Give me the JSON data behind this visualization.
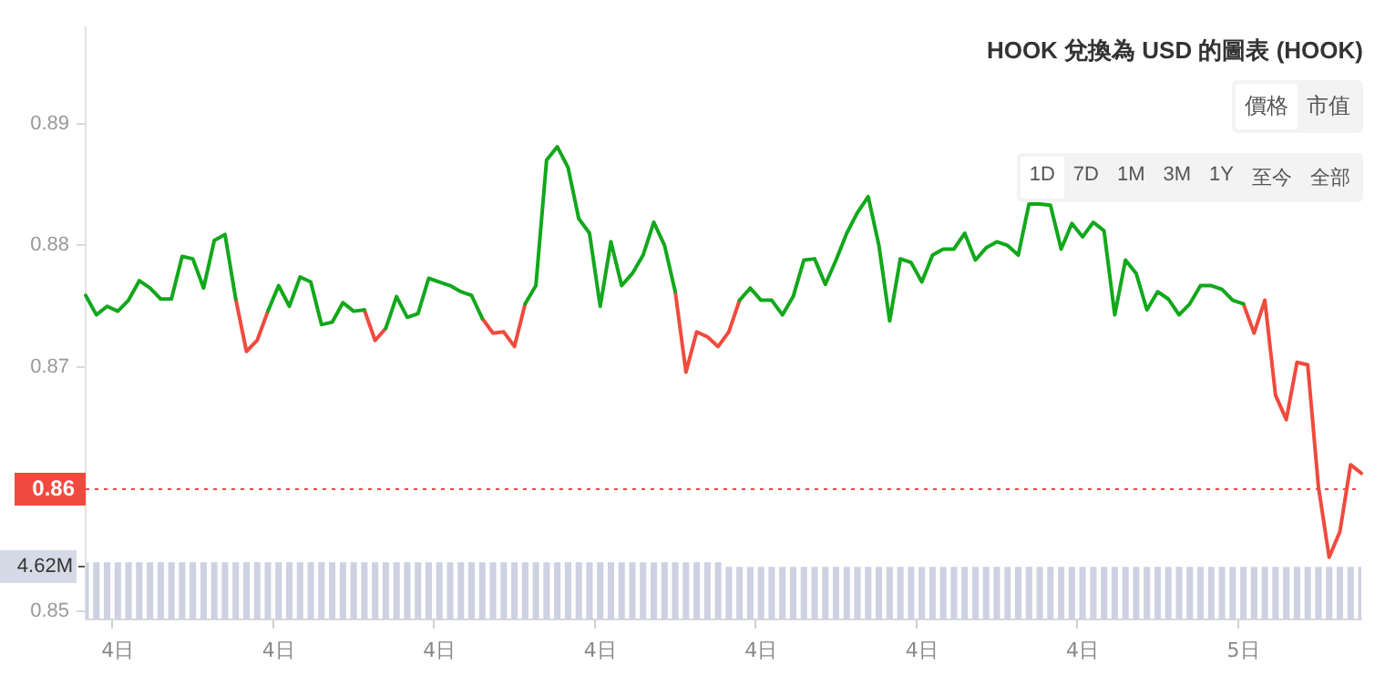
{
  "chart_data": {
    "type": "line",
    "title": "HOOK 兌換為 USD 的圖表 (HOOK)",
    "annotations": [
      "價格",
      "市值",
      "1D",
      "7D",
      "1M",
      "3M",
      "1Y",
      "至今",
      "全部"
    ],
    "categories": [
      null,
      null,
      null,
      "4日",
      null,
      null,
      null,
      null,
      null,
      null,
      null,
      null,
      null,
      null,
      null,
      null,
      null,
      null,
      "4日",
      null,
      null,
      null,
      null,
      null,
      null,
      null,
      null,
      null,
      null,
      null,
      null,
      null,
      null,
      "4日",
      null,
      null,
      null,
      null,
      null,
      null,
      null,
      null,
      null,
      null,
      null,
      null,
      null,
      null,
      "4日",
      null,
      null,
      null,
      null,
      null,
      null,
      null,
      null,
      null,
      null,
      null,
      null,
      null,
      null,
      "4日",
      null,
      null,
      null,
      null,
      null,
      null,
      null,
      null,
      null,
      null,
      null,
      null,
      null,
      null,
      "4日",
      null,
      null,
      null,
      null,
      null,
      null,
      null,
      null,
      null,
      null,
      null,
      null,
      null,
      null,
      "4日",
      null,
      null,
      null,
      null,
      null,
      null,
      null,
      null,
      null,
      null,
      null,
      null,
      null,
      null,
      "5日",
      null,
      null,
      null,
      null,
      null,
      null,
      null,
      null,
      null,
      null,
      null
    ],
    "ylim": [
      0.8493,
      0.8979
    ],
    "yticks": [
      0.85,
      0.87,
      0.88,
      0.89
    ],
    "y2lim": [
      0,
      51.8
    ],
    "y2ticks": [
      {
        "value": 4.62,
        "label": "4.62M"
      }
    ],
    "grid": false,
    "marker": "none",
    "ref_lines": [
      {
        "axis": "y",
        "value": 0.86,
        "label": "0.86",
        "color": "#f04a3e",
        "line_style": "dotted"
      }
    ],
    "series": [
      {
        "color": "#12a81c",
        "values": [
          0.8759,
          0.8743,
          0.875,
          0.8746,
          0.8755,
          0.8771,
          0.8765,
          0.8756,
          0.8756,
          0.8791,
          0.8789,
          0.8765,
          0.8804,
          0.8809,
          0.8756,
          null,
          null,
          0.8746,
          0.8767,
          0.875,
          0.8774,
          0.877,
          0.8735,
          0.8737,
          0.8753,
          0.8746,
          0.8747,
          null,
          0.8732,
          0.8758,
          0.8741,
          0.8744,
          0.8773,
          0.877,
          0.8767,
          0.8762,
          0.8759,
          0.874,
          null,
          null,
          null,
          0.8752,
          0.8767,
          0.887,
          0.8881,
          0.8864,
          0.8822,
          0.881,
          0.875,
          0.8803,
          0.8767,
          0.8777,
          0.8792,
          0.8819,
          0.88,
          0.8762,
          null,
          null,
          null,
          null,
          null,
          0.8755,
          0.8765,
          0.8755,
          0.8755,
          0.8743,
          0.8758,
          0.8788,
          0.8789,
          0.8768,
          0.8788,
          0.881,
          0.8827,
          0.884,
          0.88,
          0.8738,
          0.8789,
          0.8786,
          0.877,
          0.8792,
          0.8797,
          0.8797,
          0.881,
          0.8788,
          0.8798,
          0.8803,
          0.88,
          0.8792,
          0.8834,
          0.8834,
          0.8833,
          0.8797,
          0.8818,
          0.8807,
          0.8819,
          0.8812,
          0.8743,
          0.8788,
          0.8777,
          0.8747,
          0.8762,
          0.8756,
          0.8743,
          0.8752,
          0.8767,
          0.8767,
          0.8764,
          0.8755,
          0.8752,
          null,
          null,
          null,
          null,
          null,
          null,
          null,
          null,
          null,
          null,
          null
        ]
      },
      {
        "color": "#f04a3e",
        "values": [
          null,
          null,
          null,
          null,
          null,
          null,
          null,
          null,
          null,
          null,
          null,
          null,
          null,
          null,
          0.8756,
          0.8713,
          0.8722,
          0.8746,
          null,
          null,
          null,
          null,
          null,
          null,
          null,
          null,
          0.8747,
          0.8722,
          0.8732,
          null,
          null,
          null,
          null,
          null,
          null,
          null,
          null,
          0.874,
          0.8728,
          0.8729,
          0.8717,
          0.8752,
          null,
          null,
          null,
          null,
          null,
          null,
          null,
          null,
          null,
          null,
          null,
          null,
          null,
          0.8762,
          0.8696,
          0.8729,
          0.8725,
          0.8717,
          0.8729,
          0.8755,
          null,
          null,
          null,
          null,
          null,
          null,
          null,
          null,
          null,
          null,
          null,
          null,
          null,
          null,
          null,
          null,
          null,
          null,
          null,
          null,
          null,
          null,
          null,
          null,
          null,
          null,
          null,
          null,
          null,
          null,
          null,
          null,
          null,
          null,
          null,
          null,
          null,
          null,
          null,
          null,
          null,
          null,
          null,
          null,
          null,
          null,
          0.8752,
          0.8728,
          0.8755,
          0.8677,
          0.8657,
          0.8704,
          0.8702,
          0.8602,
          0.8544,
          0.8565,
          0.862,
          0.8613
        ]
      },
      {
        "type": "bar",
        "axis": "y2",
        "color": "#cdd1e2",
        "values": [
          5.0,
          5.0,
          5.0,
          5.0,
          5.0,
          5.0,
          5.0,
          5.0,
          5.0,
          5.0,
          5.0,
          5.0,
          5.0,
          5.0,
          5.0,
          5.0,
          5.0,
          5.0,
          5.0,
          5.0,
          5.0,
          5.0,
          5.0,
          5.0,
          5.0,
          5.0,
          5.0,
          5.0,
          5.0,
          5.0,
          5.0,
          5.0,
          5.0,
          5.0,
          5.0,
          5.0,
          5.0,
          5.0,
          5.0,
          5.0,
          5.0,
          5.0,
          5.0,
          5.0,
          5.0,
          5.0,
          5.0,
          5.0,
          5.0,
          5.0,
          5.0,
          5.0,
          5.0,
          5.0,
          5.0,
          5.0,
          5.0,
          5.0,
          5.0,
          5.0,
          4.6,
          4.6,
          4.6,
          4.6,
          4.6,
          4.6,
          4.6,
          4.6,
          4.6,
          4.6,
          4.6,
          4.6,
          4.6,
          4.6,
          4.6,
          4.6,
          4.6,
          4.6,
          4.6,
          4.6,
          4.6,
          4.6,
          4.6,
          4.6,
          4.6,
          4.6,
          4.6,
          4.6,
          4.6,
          4.6,
          4.6,
          4.6,
          4.6,
          4.6,
          4.6,
          4.6,
          4.6,
          4.6,
          4.6,
          4.6,
          4.6,
          4.6,
          4.6,
          4.6,
          4.6,
          4.6,
          4.6,
          4.6,
          4.6,
          4.6,
          4.6,
          4.6,
          4.6,
          4.6,
          4.6,
          4.6,
          4.6,
          4.6,
          4.6,
          4.6
        ]
      }
    ]
  }
}
